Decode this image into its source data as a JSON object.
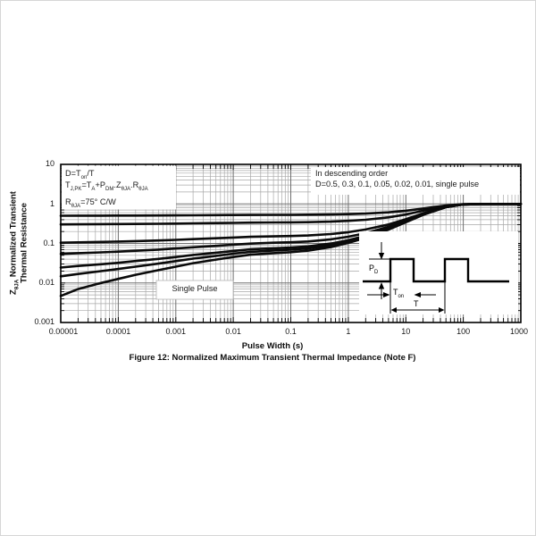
{
  "chart_data": {
    "type": "line",
    "xscale": "log",
    "yscale": "log",
    "xlim": [
      1e-05,
      1000
    ],
    "ylim": [
      0.001,
      10
    ],
    "grid": true,
    "xlabel": "Pulse Width (s)",
    "caption": "Figure 12: Normalized Maximum Transient Thermal Impedance (Note F)",
    "ylabel_lines": [
      [
        {
          "t": "Z"
        },
        {
          "s": "θJA"
        },
        {
          "t": " Normalized Transient"
        }
      ],
      [
        {
          "t": "Thermal Resistance"
        }
      ]
    ],
    "x_ticks": [
      "0.00001",
      "0.0001",
      "0.001",
      "0.01",
      "0.1",
      "1",
      "10",
      "100",
      "1000"
    ],
    "y_ticks": [
      "10",
      "1",
      "0.1",
      "0.01",
      "0.001"
    ],
    "legend": {
      "position": "top-right",
      "line1": "In descending order",
      "line2": "D=0.5, 0.3, 0.1, 0.05, 0.02, 0.01, single pulse"
    },
    "equations": {
      "line1": [
        {
          "t": "D=T"
        },
        {
          "s": "on"
        },
        {
          "t": "/T"
        }
      ],
      "line2": [
        {
          "t": "T"
        },
        {
          "s": "J,PK"
        },
        {
          "t": "=T"
        },
        {
          "s": "A"
        },
        {
          "t": "+P"
        },
        {
          "s": "DM"
        },
        {
          "t": ".Z"
        },
        {
          "s": "θJA"
        },
        {
          "t": ".R"
        },
        {
          "s": "θJA"
        }
      ],
      "line3": [
        {
          "t": "R"
        },
        {
          "s": "θJA"
        },
        {
          "t": "=75°  C/W"
        }
      ]
    },
    "single_pulse_label": "Single Pulse",
    "waveform_labels": {
      "amplitude": [
        {
          "t": "P"
        },
        {
          "s": "D"
        }
      ],
      "on_time": [
        {
          "t": "T"
        },
        {
          "s": "on"
        }
      ],
      "period": "T"
    },
    "x": [
      1e-05,
      2e-05,
      5e-05,
      0.0001,
      0.0002,
      0.0005,
      0.001,
      0.002,
      0.005,
      0.01,
      0.02,
      0.05,
      0.1,
      0.2,
      0.5,
      1,
      2,
      5,
      10,
      20,
      50,
      100,
      200,
      500,
      1000
    ],
    "series": [
      {
        "name": "D=0.5",
        "values": [
          0.5024,
          0.5035,
          0.505,
          0.5064,
          0.5081,
          0.5106,
          0.513,
          0.5158,
          0.5195,
          0.5227,
          0.5259,
          0.5284,
          0.53,
          0.5328,
          0.5405,
          0.5515,
          0.5695,
          0.6122,
          0.6719,
          0.7649,
          0.9135,
          0.9837,
          0.9994,
          1,
          1
        ]
      },
      {
        "name": "D=0.3",
        "values": [
          0.3033,
          0.3049,
          0.307,
          0.3089,
          0.3113,
          0.3148,
          0.3181,
          0.3221,
          0.3273,
          0.3318,
          0.3363,
          0.3398,
          0.3419,
          0.3459,
          0.3566,
          0.3721,
          0.3973,
          0.4571,
          0.5406,
          0.6708,
          0.8789,
          0.9771,
          0.9992,
          1,
          1
        ]
      },
      {
        "name": "D=0.1",
        "values": [
          0.1042,
          0.1063,
          0.109,
          0.1114,
          0.1145,
          0.119,
          0.1233,
          0.1284,
          0.1351,
          0.1409,
          0.1466,
          0.1511,
          0.1539,
          0.159,
          0.1728,
          0.1927,
          0.2251,
          0.302,
          0.4093,
          0.5767,
          0.8443,
          0.9706,
          0.9989,
          1,
          1
        ]
      },
      {
        "name": "D=0.05",
        "values": [
          0.0545,
          0.0567,
          0.0595,
          0.0621,
          0.0653,
          0.07,
          0.0746,
          0.08,
          0.0871,
          0.0931,
          0.0992,
          0.104,
          0.1069,
          0.1122,
          0.1269,
          0.1479,
          0.1821,
          0.2632,
          0.3765,
          0.5532,
          0.8357,
          0.9689,
          0.9989,
          1,
          1
        ]
      },
      {
        "name": "D=0.02",
        "values": [
          0.0246,
          0.0269,
          0.0298,
          0.0324,
          0.0358,
          0.0407,
          0.0454,
          0.051,
          0.0582,
          0.0645,
          0.0708,
          0.0757,
          0.0787,
          0.0842,
          0.0993,
          0.1209,
          0.1562,
          0.2399,
          0.3568,
          0.5391,
          0.8305,
          0.968,
          0.9988,
          1,
          1
        ]
      },
      {
        "name": "D=0.01",
        "values": [
          0.0147,
          0.0169,
          0.0199,
          0.0226,
          0.0259,
          0.0309,
          0.0356,
          0.0413,
          0.0486,
          0.0549,
          0.0613,
          0.0662,
          0.0693,
          0.0748,
          0.0901,
          0.112,
          0.1476,
          0.2322,
          0.3503,
          0.5344,
          0.8287,
          0.9676,
          0.9988,
          1,
          1
        ]
      },
      {
        "name": "Single Pulse",
        "values": [
          0.0047,
          0.007,
          0.01,
          0.0127,
          0.0161,
          0.0211,
          0.0259,
          0.0316,
          0.039,
          0.0454,
          0.0518,
          0.0568,
          0.0599,
          0.0655,
          0.0809,
          0.103,
          0.139,
          0.2244,
          0.3437,
          0.5297,
          0.827,
          0.9673,
          0.9988,
          0.9999,
          1
        ]
      }
    ],
    "colors": {
      "curve": "#0a0a0a",
      "grid_minor": "#a9a9a9",
      "grid_major": "#6f6f6f",
      "frame": "#000000"
    }
  }
}
